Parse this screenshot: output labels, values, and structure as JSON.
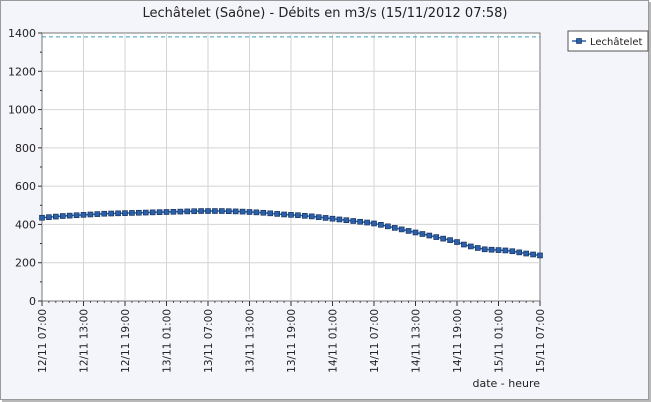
{
  "chart_data": {
    "type": "line",
    "title": "Lechâtelet (Saône) - Débits en m3/s (15/11/2012 07:58)",
    "xlabel": "date - heure",
    "ylabel": "",
    "ylim": [
      0,
      1400
    ],
    "yticks": [
      0,
      200,
      400,
      600,
      800,
      1000,
      1200,
      1400
    ],
    "xlim": [
      "12/11 07:00",
      "15/11 07:00"
    ],
    "xtick_labels": [
      "12/11  07:00",
      "12/11  13:00",
      "12/11  19:00",
      "13/11  01:00",
      "13/11  07:00",
      "13/11  13:00",
      "13/11  19:00",
      "14/11  01:00",
      "14/11  07:00",
      "14/11  13:00",
      "14/11  19:00",
      "15/11  01:00",
      "15/11  07:00"
    ],
    "grid": true,
    "reference_line": {
      "value": 1380,
      "color": "#3aa0b8",
      "style": "dashed"
    },
    "legend": {
      "position": "top-right"
    },
    "series": [
      {
        "name": "Lechâtelet",
        "color": "#2b5fa8",
        "marker": "square",
        "x": [
          "12/11 07:00",
          "12/11 08:00",
          "12/11 09:00",
          "12/11 10:00",
          "12/11 11:00",
          "12/11 12:00",
          "12/11 13:00",
          "12/11 14:00",
          "12/11 15:00",
          "12/11 16:00",
          "12/11 17:00",
          "12/11 18:00",
          "12/11 19:00",
          "12/11 20:00",
          "12/11 21:00",
          "12/11 22:00",
          "12/11 23:00",
          "13/11 00:00",
          "13/11 01:00",
          "13/11 02:00",
          "13/11 03:00",
          "13/11 04:00",
          "13/11 05:00",
          "13/11 06:00",
          "13/11 07:00",
          "13/11 08:00",
          "13/11 09:00",
          "13/11 10:00",
          "13/11 11:00",
          "13/11 12:00",
          "13/11 13:00",
          "13/11 14:00",
          "13/11 15:00",
          "13/11 16:00",
          "13/11 17:00",
          "13/11 18:00",
          "13/11 19:00",
          "13/11 20:00",
          "13/11 21:00",
          "13/11 22:00",
          "13/11 23:00",
          "14/11 00:00",
          "14/11 01:00",
          "14/11 02:00",
          "14/11 03:00",
          "14/11 04:00",
          "14/11 05:00",
          "14/11 06:00",
          "14/11 07:00",
          "14/11 08:00",
          "14/11 09:00",
          "14/11 10:00",
          "14/11 11:00",
          "14/11 12:00",
          "14/11 13:00",
          "14/11 14:00",
          "14/11 15:00",
          "14/11 16:00",
          "14/11 17:00",
          "14/11 18:00",
          "14/11 19:00",
          "14/11 20:00",
          "14/11 21:00",
          "14/11 22:00",
          "14/11 23:00",
          "15/11 00:00",
          "15/11 01:00",
          "15/11 02:00",
          "15/11 03:00",
          "15/11 04:00",
          "15/11 05:00",
          "15/11 06:00",
          "15/11 07:00"
        ],
        "values": [
          435,
          438,
          441,
          444,
          446,
          448,
          450,
          452,
          454,
          456,
          457,
          458,
          459,
          460,
          461,
          462,
          463,
          464,
          465,
          466,
          467,
          468,
          469,
          470,
          470,
          470,
          470,
          469,
          468,
          467,
          465,
          463,
          461,
          458,
          455,
          452,
          450,
          448,
          445,
          442,
          438,
          434,
          430,
          426,
          422,
          418,
          414,
          410,
          405,
          398,
          390,
          382,
          374,
          366,
          358,
          350,
          342,
          334,
          326,
          318,
          308,
          295,
          285,
          277,
          270,
          268,
          266,
          264,
          260,
          254,
          248,
          243,
          238
        ]
      }
    ]
  }
}
